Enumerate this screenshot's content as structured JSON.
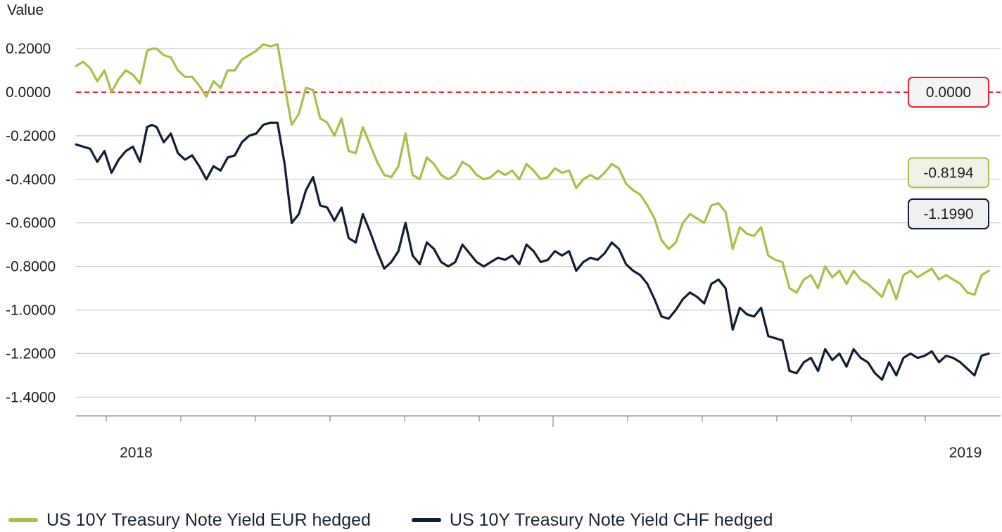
{
  "chart_data": {
    "type": "line",
    "ylabel": "Value",
    "ylim": [
      -1.5,
      0.33
    ],
    "yticks": [
      0.2,
      0.0,
      -0.2,
      -0.4,
      -0.6,
      -0.8,
      -1.0,
      -1.2,
      -1.4
    ],
    "ytick_labels": [
      "0.2000",
      "0.0000",
      "-0.2000",
      "-0.4000",
      "-0.6000",
      "-0.8000",
      "-1.0000",
      "-1.2000",
      "-1.4000"
    ],
    "xlim": [
      "2017-12-20",
      "2019-01-14"
    ],
    "xtick_labels": [
      {
        "label": "2018",
        "date": "2018-01-01"
      },
      {
        "label": "2019",
        "date": "2019-01-01"
      }
    ],
    "grid": "horizontal",
    "reference_line": {
      "value": 0.0,
      "label": "0.0000",
      "color": "#e8242c"
    },
    "series": [
      {
        "name": "US 10Y Treasury Note Yield EUR hedged",
        "color": "#a7c04a",
        "last_label": "-0.8194",
        "x": [
          "2017-12-20",
          "2017-12-23",
          "2017-12-26",
          "2017-12-29",
          "2018-01-01",
          "2018-01-04",
          "2018-01-07",
          "2018-01-10",
          "2018-01-13",
          "2018-01-16",
          "2018-01-19",
          "2018-01-21",
          "2018-01-23",
          "2018-01-26",
          "2018-01-29",
          "2018-02-01",
          "2018-02-04",
          "2018-02-07",
          "2018-02-10",
          "2018-02-13",
          "2018-02-16",
          "2018-02-19",
          "2018-02-22",
          "2018-02-25",
          "2018-02-28",
          "2018-03-03",
          "2018-03-06",
          "2018-03-09",
          "2018-03-12",
          "2018-03-15",
          "2018-03-18",
          "2018-03-21",
          "2018-03-24",
          "2018-03-27",
          "2018-03-30",
          "2018-04-02",
          "2018-04-05",
          "2018-04-08",
          "2018-04-11",
          "2018-04-14",
          "2018-04-17",
          "2018-04-20",
          "2018-04-23",
          "2018-04-26",
          "2018-04-29",
          "2018-05-02",
          "2018-05-05",
          "2018-05-08",
          "2018-05-11",
          "2018-05-14",
          "2018-05-17",
          "2018-05-20",
          "2018-05-23",
          "2018-05-26",
          "2018-05-29",
          "2018-06-01",
          "2018-06-04",
          "2018-06-07",
          "2018-06-10",
          "2018-06-13",
          "2018-06-16",
          "2018-06-19",
          "2018-06-22",
          "2018-06-25",
          "2018-06-28",
          "2018-07-01",
          "2018-07-04",
          "2018-07-07",
          "2018-07-10",
          "2018-07-13",
          "2018-07-16",
          "2018-07-19",
          "2018-07-22",
          "2018-07-25",
          "2018-07-28",
          "2018-07-31",
          "2018-08-03",
          "2018-08-06",
          "2018-08-09",
          "2018-08-12",
          "2018-08-15",
          "2018-08-18",
          "2018-08-21",
          "2018-08-24",
          "2018-08-27",
          "2018-08-30",
          "2018-09-02",
          "2018-09-05",
          "2018-09-08",
          "2018-09-11",
          "2018-09-14",
          "2018-09-17",
          "2018-09-20",
          "2018-09-23",
          "2018-09-26",
          "2018-09-29",
          "2018-10-02",
          "2018-10-05",
          "2018-10-08",
          "2018-10-11",
          "2018-10-14",
          "2018-10-17",
          "2018-10-20",
          "2018-10-23",
          "2018-10-26",
          "2018-10-29",
          "2018-11-01",
          "2018-11-04",
          "2018-11-07",
          "2018-11-10",
          "2018-11-13",
          "2018-11-16",
          "2018-11-19",
          "2018-11-22",
          "2018-11-25",
          "2018-11-28",
          "2018-12-01",
          "2018-12-04",
          "2018-12-07",
          "2018-12-10",
          "2018-12-13",
          "2018-12-16",
          "2018-12-19",
          "2018-12-22",
          "2018-12-25",
          "2018-12-28",
          "2018-12-31",
          "2019-01-03",
          "2019-01-06",
          "2019-01-09"
        ],
        "values": [
          0.12,
          0.14,
          0.11,
          0.05,
          0.1,
          0.0,
          0.06,
          0.1,
          0.08,
          0.04,
          0.19,
          0.2,
          0.2,
          0.17,
          0.16,
          0.1,
          0.07,
          0.07,
          0.03,
          -0.02,
          0.05,
          0.02,
          0.1,
          0.1,
          0.15,
          0.17,
          0.19,
          0.22,
          0.21,
          0.22,
          0.03,
          -0.15,
          -0.1,
          0.02,
          0.01,
          -0.12,
          -0.14,
          -0.2,
          -0.12,
          -0.27,
          -0.28,
          -0.16,
          -0.24,
          -0.32,
          -0.38,
          -0.39,
          -0.34,
          -0.19,
          -0.38,
          -0.4,
          -0.3,
          -0.33,
          -0.38,
          -0.4,
          -0.38,
          -0.32,
          -0.34,
          -0.38,
          -0.4,
          -0.39,
          -0.36,
          -0.38,
          -0.36,
          -0.4,
          -0.33,
          -0.36,
          -0.4,
          -0.39,
          -0.35,
          -0.37,
          -0.36,
          -0.44,
          -0.4,
          -0.38,
          -0.4,
          -0.37,
          -0.33,
          -0.35,
          -0.42,
          -0.45,
          -0.47,
          -0.52,
          -0.58,
          -0.68,
          -0.72,
          -0.69,
          -0.6,
          -0.56,
          -0.58,
          -0.6,
          -0.52,
          -0.51,
          -0.55,
          -0.72,
          -0.62,
          -0.65,
          -0.66,
          -0.62,
          -0.75,
          -0.77,
          -0.78,
          -0.9,
          -0.92,
          -0.86,
          -0.84,
          -0.9,
          -0.8,
          -0.85,
          -0.82,
          -0.88,
          -0.82,
          -0.86,
          -0.88,
          -0.91,
          -0.94,
          -0.86,
          -0.95,
          -0.84,
          -0.82,
          -0.85,
          -0.83,
          -0.81,
          -0.86,
          -0.84,
          -0.86,
          -0.88,
          -0.92,
          -0.93,
          -0.84,
          -0.82
        ]
      },
      {
        "name": "US 10Y Treasury Note Yield CHF hedged",
        "color": "#121d33",
        "last_label": "-1.1990",
        "x": [
          "2017-12-20",
          "2017-12-23",
          "2017-12-26",
          "2017-12-29",
          "2018-01-01",
          "2018-01-04",
          "2018-01-07",
          "2018-01-10",
          "2018-01-13",
          "2018-01-16",
          "2018-01-19",
          "2018-01-21",
          "2018-01-23",
          "2018-01-26",
          "2018-01-29",
          "2018-02-01",
          "2018-02-04",
          "2018-02-07",
          "2018-02-10",
          "2018-02-13",
          "2018-02-16",
          "2018-02-19",
          "2018-02-22",
          "2018-02-25",
          "2018-02-28",
          "2018-03-03",
          "2018-03-06",
          "2018-03-09",
          "2018-03-12",
          "2018-03-15",
          "2018-03-18",
          "2018-03-21",
          "2018-03-24",
          "2018-03-27",
          "2018-03-30",
          "2018-04-02",
          "2018-04-05",
          "2018-04-08",
          "2018-04-11",
          "2018-04-14",
          "2018-04-17",
          "2018-04-20",
          "2018-04-23",
          "2018-04-26",
          "2018-04-29",
          "2018-05-02",
          "2018-05-05",
          "2018-05-08",
          "2018-05-11",
          "2018-05-14",
          "2018-05-17",
          "2018-05-20",
          "2018-05-23",
          "2018-05-26",
          "2018-05-29",
          "2018-06-01",
          "2018-06-04",
          "2018-06-07",
          "2018-06-10",
          "2018-06-13",
          "2018-06-16",
          "2018-06-19",
          "2018-06-22",
          "2018-06-25",
          "2018-06-28",
          "2018-07-01",
          "2018-07-04",
          "2018-07-07",
          "2018-07-10",
          "2018-07-13",
          "2018-07-16",
          "2018-07-19",
          "2018-07-22",
          "2018-07-25",
          "2018-07-28",
          "2018-07-31",
          "2018-08-03",
          "2018-08-06",
          "2018-08-09",
          "2018-08-12",
          "2018-08-15",
          "2018-08-18",
          "2018-08-21",
          "2018-08-24",
          "2018-08-27",
          "2018-08-30",
          "2018-09-02",
          "2018-09-05",
          "2018-09-08",
          "2018-09-11",
          "2018-09-14",
          "2018-09-17",
          "2018-09-20",
          "2018-09-23",
          "2018-09-26",
          "2018-09-29",
          "2018-10-02",
          "2018-10-05",
          "2018-10-08",
          "2018-10-11",
          "2018-10-14",
          "2018-10-17",
          "2018-10-20",
          "2018-10-23",
          "2018-10-26",
          "2018-10-29",
          "2018-11-01",
          "2018-11-04",
          "2018-11-07",
          "2018-11-10",
          "2018-11-13",
          "2018-11-16",
          "2018-11-19",
          "2018-11-22",
          "2018-11-25",
          "2018-11-28",
          "2018-12-01",
          "2018-12-04",
          "2018-12-07",
          "2018-12-10",
          "2018-12-13",
          "2018-12-16",
          "2018-12-19",
          "2018-12-22",
          "2018-12-25",
          "2018-12-28",
          "2018-12-31",
          "2019-01-03",
          "2019-01-06",
          "2019-01-09"
        ],
        "values": [
          -0.24,
          -0.25,
          -0.26,
          -0.32,
          -0.27,
          -0.37,
          -0.31,
          -0.27,
          -0.25,
          -0.32,
          -0.16,
          -0.15,
          -0.16,
          -0.23,
          -0.19,
          -0.28,
          -0.31,
          -0.29,
          -0.34,
          -0.4,
          -0.34,
          -0.36,
          -0.3,
          -0.29,
          -0.23,
          -0.2,
          -0.19,
          -0.15,
          -0.14,
          -0.14,
          -0.33,
          -0.6,
          -0.56,
          -0.45,
          -0.39,
          -0.52,
          -0.53,
          -0.59,
          -0.53,
          -0.67,
          -0.69,
          -0.56,
          -0.64,
          -0.73,
          -0.81,
          -0.78,
          -0.73,
          -0.6,
          -0.75,
          -0.79,
          -0.69,
          -0.72,
          -0.78,
          -0.8,
          -0.78,
          -0.7,
          -0.74,
          -0.78,
          -0.8,
          -0.78,
          -0.76,
          -0.77,
          -0.75,
          -0.79,
          -0.7,
          -0.73,
          -0.78,
          -0.77,
          -0.73,
          -0.75,
          -0.73,
          -0.82,
          -0.78,
          -0.76,
          -0.77,
          -0.74,
          -0.69,
          -0.72,
          -0.79,
          -0.82,
          -0.84,
          -0.88,
          -0.95,
          -1.03,
          -1.04,
          -1.0,
          -0.95,
          -0.92,
          -0.94,
          -0.97,
          -0.88,
          -0.86,
          -0.9,
          -1.09,
          -0.99,
          -1.02,
          -1.03,
          -0.99,
          -1.12,
          -1.13,
          -1.14,
          -1.28,
          -1.29,
          -1.24,
          -1.22,
          -1.28,
          -1.18,
          -1.23,
          -1.2,
          -1.26,
          -1.18,
          -1.22,
          -1.24,
          -1.29,
          -1.32,
          -1.24,
          -1.3,
          -1.22,
          -1.2,
          -1.22,
          -1.21,
          -1.19,
          -1.24,
          -1.21,
          -1.22,
          -1.24,
          -1.27,
          -1.3,
          -1.21,
          -1.2
        ]
      }
    ]
  }
}
